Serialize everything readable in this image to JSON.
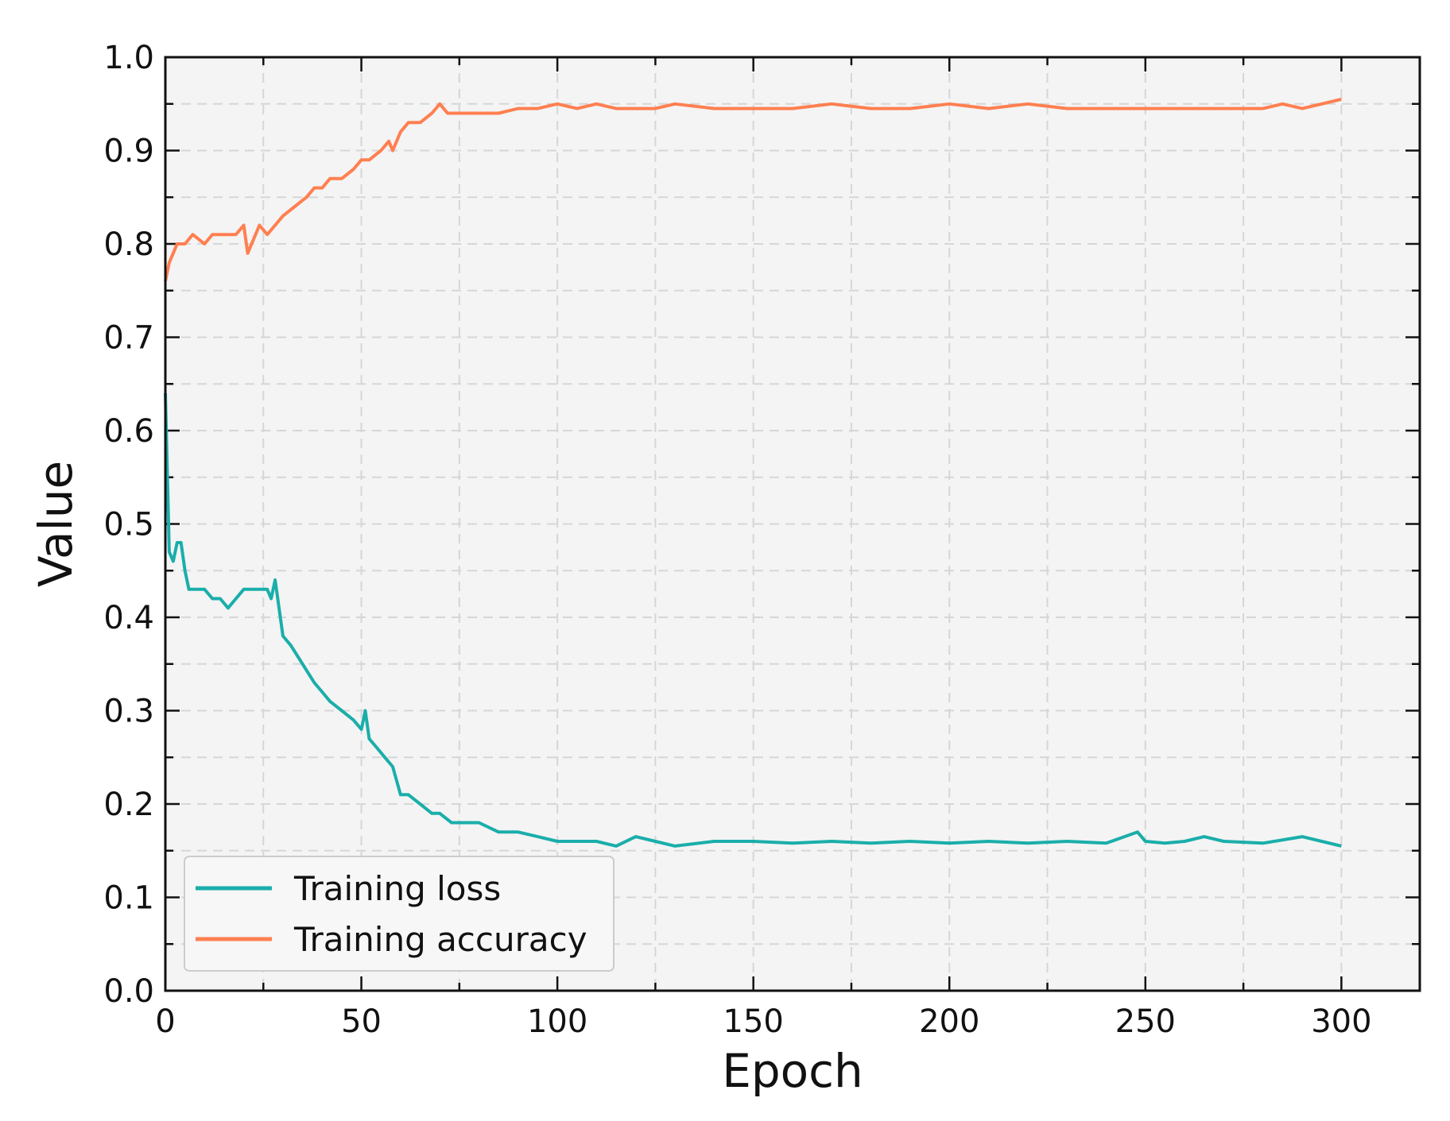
{
  "chart_data": {
    "type": "line",
    "title": "",
    "xlabel": "Epoch",
    "ylabel": "Value",
    "xlim": [
      0,
      320
    ],
    "ylim": [
      0.0,
      1.0
    ],
    "x_ticks": [
      0,
      50,
      100,
      150,
      200,
      250,
      300
    ],
    "y_ticks": [
      0.0,
      0.1,
      0.2,
      0.3,
      0.4,
      0.5,
      0.6,
      0.7,
      0.8,
      0.9,
      1.0
    ],
    "x_tick_labels": [
      "0",
      "50",
      "100",
      "150",
      "200",
      "250",
      "300"
    ],
    "y_tick_labels": [
      "0.0",
      "0.1",
      "0.2",
      "0.3",
      "0.4",
      "0.5",
      "0.6",
      "0.7",
      "0.8",
      "0.9",
      "1.0"
    ],
    "grid": true,
    "grid_style": "dashed",
    "legend_position": "lower-left",
    "background_color": "#f4f4f4",
    "series": [
      {
        "name": "Training loss",
        "color": "#1aaeaa",
        "points": [
          [
            0,
            0.64
          ],
          [
            1,
            0.47
          ],
          [
            2,
            0.46
          ],
          [
            3,
            0.48
          ],
          [
            4,
            0.48
          ],
          [
            5,
            0.45
          ],
          [
            6,
            0.43
          ],
          [
            8,
            0.43
          ],
          [
            10,
            0.43
          ],
          [
            12,
            0.42
          ],
          [
            14,
            0.42
          ],
          [
            16,
            0.41
          ],
          [
            18,
            0.42
          ],
          [
            20,
            0.43
          ],
          [
            22,
            0.43
          ],
          [
            24,
            0.43
          ],
          [
            26,
            0.43
          ],
          [
            27,
            0.42
          ],
          [
            28,
            0.44
          ],
          [
            29,
            0.41
          ],
          [
            30,
            0.38
          ],
          [
            32,
            0.37
          ],
          [
            35,
            0.35
          ],
          [
            38,
            0.33
          ],
          [
            40,
            0.32
          ],
          [
            42,
            0.31
          ],
          [
            45,
            0.3
          ],
          [
            48,
            0.29
          ],
          [
            50,
            0.28
          ],
          [
            51,
            0.3
          ],
          [
            52,
            0.27
          ],
          [
            54,
            0.26
          ],
          [
            56,
            0.25
          ],
          [
            58,
            0.24
          ],
          [
            60,
            0.21
          ],
          [
            62,
            0.21
          ],
          [
            65,
            0.2
          ],
          [
            68,
            0.19
          ],
          [
            70,
            0.19
          ],
          [
            73,
            0.18
          ],
          [
            76,
            0.18
          ],
          [
            80,
            0.18
          ],
          [
            85,
            0.17
          ],
          [
            90,
            0.17
          ],
          [
            95,
            0.165
          ],
          [
            100,
            0.16
          ],
          [
            105,
            0.16
          ],
          [
            110,
            0.16
          ],
          [
            115,
            0.155
          ],
          [
            120,
            0.165
          ],
          [
            125,
            0.16
          ],
          [
            130,
            0.155
          ],
          [
            140,
            0.16
          ],
          [
            150,
            0.16
          ],
          [
            160,
            0.158
          ],
          [
            170,
            0.16
          ],
          [
            180,
            0.158
          ],
          [
            190,
            0.16
          ],
          [
            200,
            0.158
          ],
          [
            210,
            0.16
          ],
          [
            220,
            0.158
          ],
          [
            230,
            0.16
          ],
          [
            240,
            0.158
          ],
          [
            248,
            0.17
          ],
          [
            250,
            0.16
          ],
          [
            255,
            0.158
          ],
          [
            260,
            0.16
          ],
          [
            265,
            0.165
          ],
          [
            270,
            0.16
          ],
          [
            280,
            0.158
          ],
          [
            290,
            0.165
          ],
          [
            295,
            0.16
          ],
          [
            300,
            0.155
          ]
        ]
      },
      {
        "name": "Training accuracy",
        "color": "#ff7f50",
        "points": [
          [
            0,
            0.76
          ],
          [
            1,
            0.78
          ],
          [
            2,
            0.79
          ],
          [
            3,
            0.8
          ],
          [
            5,
            0.8
          ],
          [
            7,
            0.81
          ],
          [
            10,
            0.8
          ],
          [
            12,
            0.81
          ],
          [
            15,
            0.81
          ],
          [
            18,
            0.81
          ],
          [
            20,
            0.82
          ],
          [
            21,
            0.79
          ],
          [
            22,
            0.8
          ],
          [
            24,
            0.82
          ],
          [
            26,
            0.81
          ],
          [
            28,
            0.82
          ],
          [
            30,
            0.83
          ],
          [
            33,
            0.84
          ],
          [
            36,
            0.85
          ],
          [
            38,
            0.86
          ],
          [
            40,
            0.86
          ],
          [
            42,
            0.87
          ],
          [
            45,
            0.87
          ],
          [
            48,
            0.88
          ],
          [
            50,
            0.89
          ],
          [
            52,
            0.89
          ],
          [
            55,
            0.9
          ],
          [
            57,
            0.91
          ],
          [
            58,
            0.9
          ],
          [
            60,
            0.92
          ],
          [
            62,
            0.93
          ],
          [
            65,
            0.93
          ],
          [
            68,
            0.94
          ],
          [
            70,
            0.95
          ],
          [
            72,
            0.94
          ],
          [
            75,
            0.94
          ],
          [
            80,
            0.94
          ],
          [
            85,
            0.94
          ],
          [
            90,
            0.945
          ],
          [
            95,
            0.945
          ],
          [
            100,
            0.95
          ],
          [
            105,
            0.945
          ],
          [
            110,
            0.95
          ],
          [
            115,
            0.945
          ],
          [
            120,
            0.945
          ],
          [
            125,
            0.945
          ],
          [
            130,
            0.95
          ],
          [
            140,
            0.945
          ],
          [
            150,
            0.945
          ],
          [
            160,
            0.945
          ],
          [
            170,
            0.95
          ],
          [
            180,
            0.945
          ],
          [
            190,
            0.945
          ],
          [
            200,
            0.95
          ],
          [
            210,
            0.945
          ],
          [
            220,
            0.95
          ],
          [
            230,
            0.945
          ],
          [
            240,
            0.945
          ],
          [
            250,
            0.945
          ],
          [
            260,
            0.945
          ],
          [
            270,
            0.945
          ],
          [
            280,
            0.945
          ],
          [
            285,
            0.95
          ],
          [
            290,
            0.945
          ],
          [
            295,
            0.95
          ],
          [
            300,
            0.955
          ]
        ]
      }
    ]
  }
}
